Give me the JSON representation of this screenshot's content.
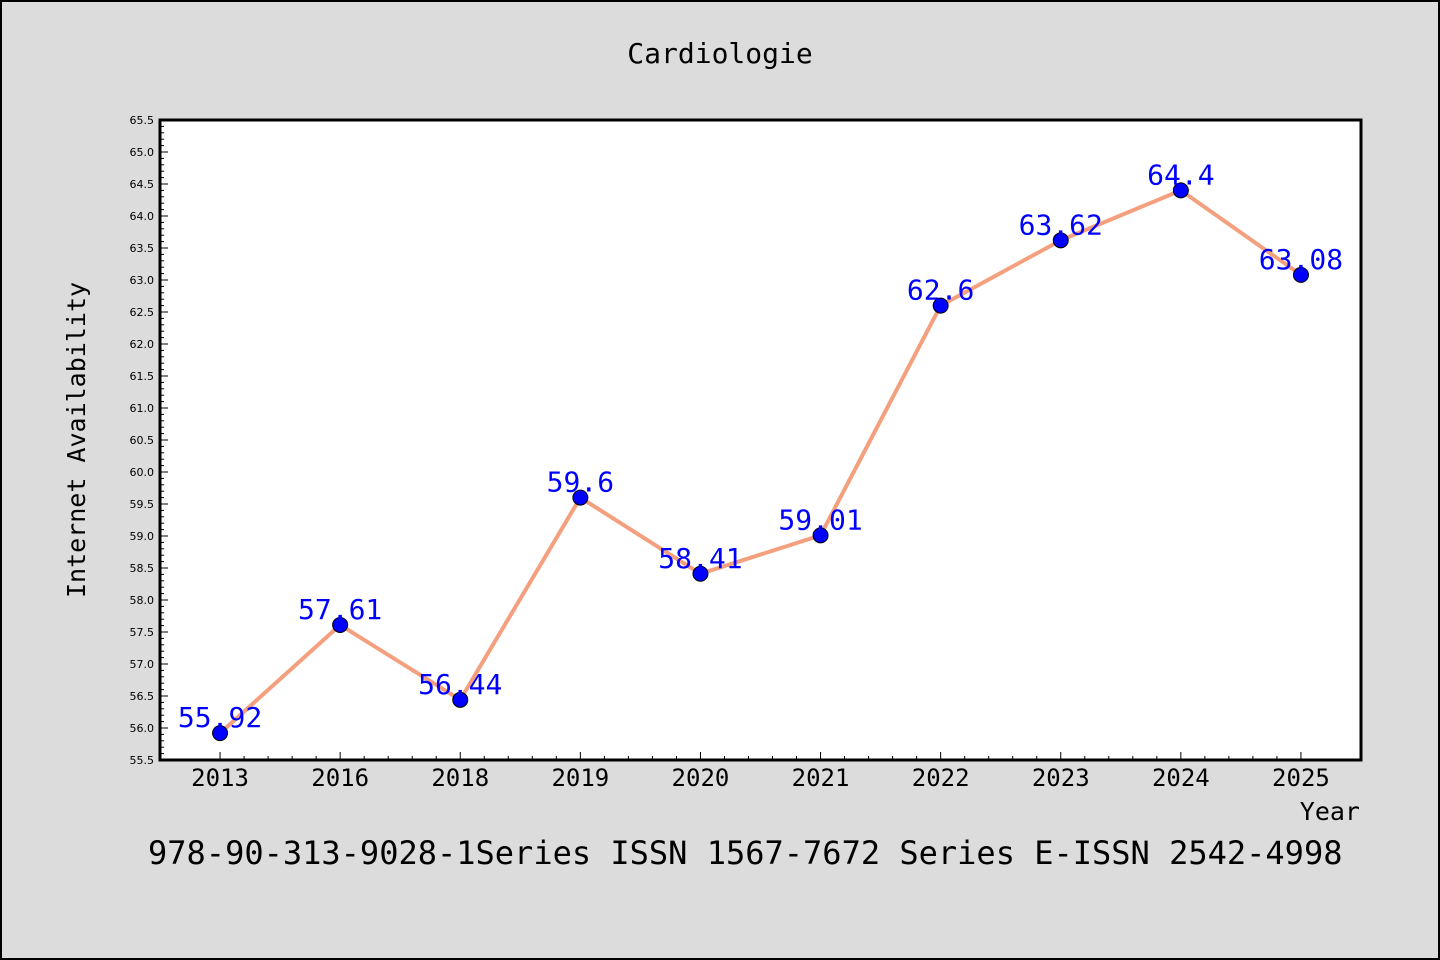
{
  "chart_data": {
    "type": "line",
    "title": "Cardiologie",
    "xlabel": "Year",
    "ylabel": "Internet Availability",
    "categories": [
      "2013",
      "2016",
      "2018",
      "2019",
      "2020",
      "2021",
      "2022",
      "2023",
      "2024",
      "2025"
    ],
    "series": [
      {
        "values": [
          55.92,
          57.61,
          56.44,
          59.6,
          58.41,
          59.01,
          62.6,
          63.62,
          64.4,
          63.08
        ],
        "data_labels": [
          "55.92",
          "57.61",
          "56.44",
          "59.6",
          "58.41",
          "59.01",
          "62.6",
          "63.62",
          "64.4",
          "63.08"
        ]
      }
    ],
    "ylim": [
      55.5,
      65.5
    ],
    "yticks": [
      "55.5",
      "56.0",
      "56.5",
      "57.0",
      "57.5",
      "58.0",
      "58.5",
      "59.0",
      "59.5",
      "60.0",
      "60.5",
      "61.0",
      "61.5",
      "62.0",
      "62.5",
      "63.0",
      "63.5",
      "64.0",
      "64.5",
      "65.0",
      "65.5"
    ],
    "grid": false,
    "line_color": "#f4a07e",
    "marker_color": "#0000ff",
    "label_color": "#0000ff",
    "plot_background": "#ffffff",
    "figure_background": "#dcdcdc"
  },
  "footnote": "978-90-313-9028-1Series ISSN 1567-7672 Series E-ISSN 2542-4998"
}
